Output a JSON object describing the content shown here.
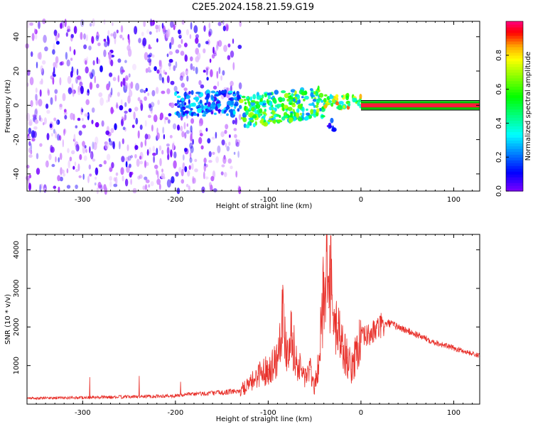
{
  "figure_title": "C2E5.2024.158.21.59.G19",
  "chart_data": [
    {
      "type": "heatmap",
      "xlabel": "Height of straight line (km)",
      "ylabel": "Frequency (Hz)",
      "xlim": [
        -360,
        128
      ],
      "ylim": [
        -50,
        49
      ],
      "xticks": [
        -300,
        -200,
        -100,
        0,
        100
      ],
      "yticks": [
        -40,
        -20,
        0,
        20,
        40
      ],
      "grid": false,
      "colorbar": {
        "label": "Normalized spectral amplitude",
        "range": [
          0,
          1
        ],
        "ticks": [
          "0.0",
          "0.2",
          "0.4",
          "0.6",
          "0.8"
        ],
        "colormap": "gist_rainbow_r",
        "colors": [
          "#8000ff",
          "#0000ff",
          "#00ffff",
          "#00ff00",
          "#ffff00",
          "#ff8000",
          "#ff0000",
          "#ff0080"
        ]
      },
      "regions": [
        {
          "x_range": [
            -360,
            -130
          ],
          "freq_range": [
            -50,
            49
          ],
          "amplitude_range": [
            0.0,
            0.1
          ]
        },
        {
          "x_range": [
            -200,
            -130
          ],
          "freq_range": [
            -6,
            8
          ],
          "amplitude_range": [
            0.05,
            0.35
          ]
        },
        {
          "x_range": [
            -130,
            -40
          ],
          "freq_range": [
            -10,
            8
          ],
          "amplitude_range": [
            0.2,
            0.75
          ]
        },
        {
          "x_range": [
            -40,
            0
          ],
          "freq_range": [
            -2,
            6
          ],
          "amplitude_range": [
            0.3,
            0.9
          ]
        },
        {
          "x_range": [
            -35,
            -28
          ],
          "freq_range": [
            -16,
            -8
          ],
          "amplitude_range": [
            0.05,
            0.2
          ]
        },
        {
          "x_range": [
            0,
            128
          ],
          "freq_range": [
            -1,
            1
          ],
          "amplitude_range": [
            0.9,
            1.0
          ]
        }
      ]
    },
    {
      "type": "line",
      "xlabel": "Height of straight line (km)",
      "ylabel": "SNR (10 * v/v)",
      "xlim": [
        -360,
        128
      ],
      "ylim": [
        0,
        4400
      ],
      "xticks": [
        -300,
        -200,
        -100,
        0,
        100
      ],
      "yticks": [
        1000,
        2000,
        3000,
        4000
      ],
      "grid": false,
      "series": [
        {
          "color": "#e8302a",
          "x": [
            -360,
            -300,
            -250,
            -200,
            -180,
            -150,
            -130,
            -120,
            -110,
            -100,
            -90,
            -85,
            -80,
            -75,
            -70,
            -60,
            -55,
            -50,
            -45,
            -40,
            -37,
            -35,
            -33,
            -30,
            -25,
            -20,
            -15,
            -10,
            -5,
            0,
            10,
            20,
            30,
            40,
            60,
            80,
            100,
            128
          ],
          "y": [
            150,
            170,
            190,
            220,
            260,
            300,
            350,
            500,
            800,
            900,
            1200,
            2400,
            1400,
            1900,
            1100,
            700,
            900,
            400,
            1200,
            3000,
            4400,
            2500,
            3500,
            1900,
            2100,
            1500,
            1200,
            900,
            1400,
            1700,
            1800,
            2000,
            2100,
            2000,
            1800,
            1600,
            1450,
            1250
          ]
        }
      ]
    }
  ]
}
